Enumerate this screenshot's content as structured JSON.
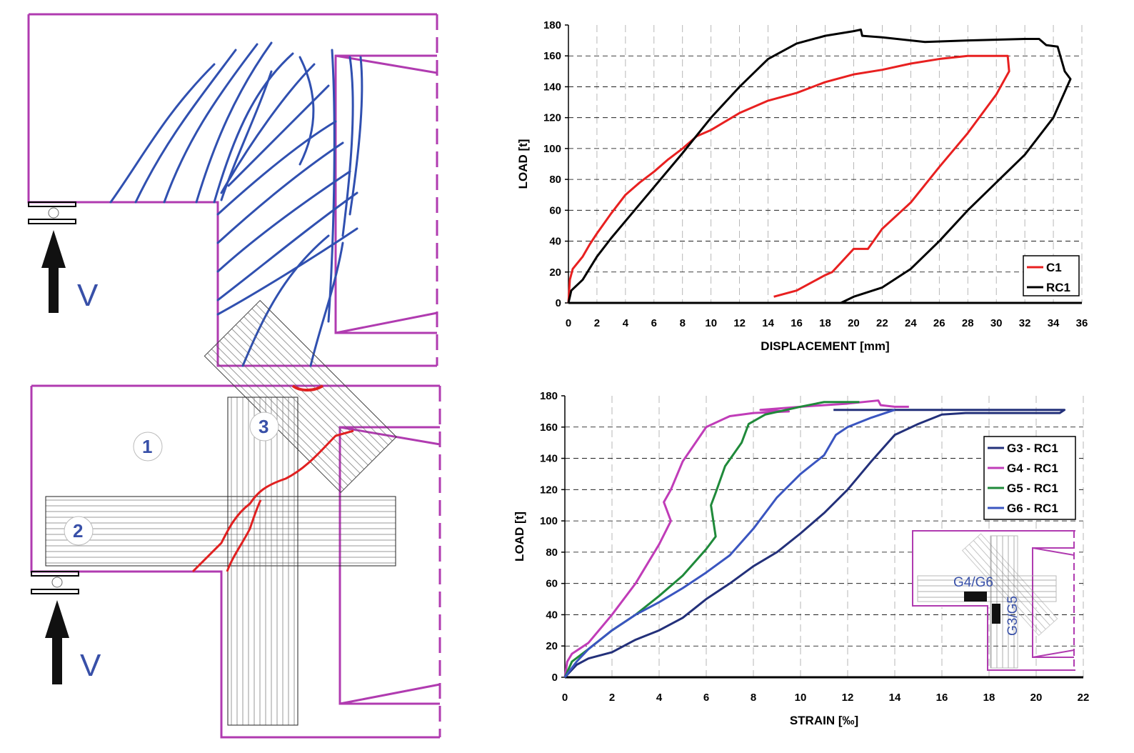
{
  "diagrams": {
    "top": {
      "force_label": "V"
    },
    "bottom": {
      "force_label": "V",
      "strip_labels": [
        "1",
        "2",
        "3"
      ]
    }
  },
  "colors": {
    "frame": "#b03bb0",
    "cracks": "#3050b0",
    "main_crack": "#e02020"
  },
  "chart_data": [
    {
      "type": "line",
      "title": "",
      "xlabel": "DISPLACEMENT [mm]",
      "ylabel": "LOAD [t]",
      "xlim": [
        0,
        36
      ],
      "ylim": [
        0,
        180
      ],
      "xticks": [
        "0",
        "2",
        "4",
        "6",
        "8",
        "10",
        "12",
        "14",
        "16",
        "18",
        "20",
        "22",
        "24",
        "26",
        "28",
        "30",
        "32",
        "34",
        "36"
      ],
      "yticks": [
        "0",
        "20",
        "40",
        "60",
        "80",
        "100",
        "120",
        "140",
        "160",
        "180"
      ],
      "grid": true,
      "legend": "bottom-right",
      "series": [
        {
          "name": "C1",
          "color": "#e82020",
          "points": [
            [
              0,
              0
            ],
            [
              0.1,
              15
            ],
            [
              0.3,
              22
            ],
            [
              1,
              30
            ],
            [
              1.5,
              38
            ],
            [
              2,
              45
            ],
            [
              3,
              58
            ],
            [
              4,
              70
            ],
            [
              5,
              78
            ],
            [
              6,
              85
            ],
            [
              7,
              93
            ],
            [
              8,
              100
            ],
            [
              9,
              108
            ],
            [
              10,
              112
            ],
            [
              12,
              123
            ],
            [
              14,
              131
            ],
            [
              16,
              136
            ],
            [
              18,
              143
            ],
            [
              20,
              148
            ],
            [
              22,
              151
            ],
            [
              24,
              155
            ],
            [
              26,
              158
            ],
            [
              28,
              160
            ],
            [
              30.8,
              160
            ],
            [
              30.9,
              150
            ],
            [
              30,
              135
            ],
            [
              28,
              110
            ],
            [
              26,
              88
            ],
            [
              24,
              65
            ],
            [
              22,
              48
            ],
            [
              21,
              35
            ],
            [
              20,
              35
            ],
            [
              18.5,
              20
            ],
            [
              18,
              18
            ],
            [
              16,
              8
            ],
            [
              14.4,
              4
            ]
          ]
        },
        {
          "name": "RC1",
          "color": "#000000",
          "points": [
            [
              0,
              0
            ],
            [
              0.2,
              8
            ],
            [
              1,
              15
            ],
            [
              2,
              30
            ],
            [
              3,
              42
            ],
            [
              4,
              53
            ],
            [
              6,
              75
            ],
            [
              8,
              97
            ],
            [
              10,
              120
            ],
            [
              12,
              140
            ],
            [
              14,
              158
            ],
            [
              16,
              168
            ],
            [
              18,
              173
            ],
            [
              20,
              176
            ],
            [
              20.5,
              177
            ],
            [
              20.6,
              173
            ],
            [
              22,
              172
            ],
            [
              25,
              169
            ],
            [
              28,
              170
            ],
            [
              32,
              171
            ],
            [
              33,
              171
            ],
            [
              33.5,
              167
            ],
            [
              34.3,
              166
            ],
            [
              34.8,
              150
            ],
            [
              35.2,
              145
            ],
            [
              34,
              120
            ],
            [
              32,
              96
            ],
            [
              30,
              78
            ],
            [
              28,
              60
            ],
            [
              26,
              40
            ],
            [
              24,
              22
            ],
            [
              22,
              10
            ],
            [
              20,
              4
            ],
            [
              19.1,
              0
            ]
          ]
        }
      ]
    },
    {
      "type": "line",
      "title": "",
      "xlabel": "STRAIN [‰]",
      "ylabel": "LOAD [t]",
      "xlim": [
        0,
        22
      ],
      "ylim": [
        0,
        180
      ],
      "xticks": [
        "0",
        "2",
        "4",
        "6",
        "8",
        "10",
        "12",
        "14",
        "16",
        "18",
        "20",
        "22"
      ],
      "yticks": [
        "0",
        "20",
        "40",
        "60",
        "80",
        "100",
        "120",
        "140",
        "160",
        "180"
      ],
      "grid": true,
      "legend": "top-right",
      "inset_labels": [
        "G4/G6",
        "G3/G5"
      ],
      "series": [
        {
          "name": "G3 - RC1",
          "color": "#23307a",
          "points": [
            [
              0,
              0
            ],
            [
              0.5,
              8
            ],
            [
              1,
              12
            ],
            [
              2,
              16
            ],
            [
              3,
              24
            ],
            [
              4,
              30
            ],
            [
              5,
              38
            ],
            [
              6,
              50
            ],
            [
              7,
              60
            ],
            [
              8,
              71
            ],
            [
              9,
              80
            ],
            [
              10,
              92
            ],
            [
              11,
              105
            ],
            [
              12,
              120
            ],
            [
              13,
              138
            ],
            [
              14,
              155
            ],
            [
              15,
              162
            ],
            [
              16,
              168
            ],
            [
              17,
              169
            ],
            [
              21,
              169
            ],
            [
              21.2,
              171
            ],
            [
              11.4,
              171
            ]
          ]
        },
        {
          "name": "G4 - RC1",
          "color": "#c03cb8",
          "points": [
            [
              0,
              0
            ],
            [
              0.1,
              10
            ],
            [
              0.3,
              15
            ],
            [
              1,
              22
            ],
            [
              2,
              40
            ],
            [
              3,
              60
            ],
            [
              4,
              85
            ],
            [
              4.5,
              100
            ],
            [
              4.3,
              108
            ],
            [
              4.2,
              112
            ],
            [
              4.5,
              120
            ],
            [
              5,
              138
            ],
            [
              6,
              160
            ],
            [
              7,
              167
            ],
            [
              8,
              169
            ],
            [
              9.5,
              170
            ],
            [
              8.3,
              171
            ],
            [
              10,
              173
            ],
            [
              12,
              175
            ],
            [
              13.3,
              177
            ],
            [
              13.4,
              174
            ],
            [
              14,
              173
            ],
            [
              14.6,
              173
            ]
          ]
        },
        {
          "name": "G5 - RC1",
          "color": "#1f8a3a",
          "points": [
            [
              0,
              0
            ],
            [
              0.3,
              10
            ],
            [
              1,
              18
            ],
            [
              2,
              30
            ],
            [
              3,
              40
            ],
            [
              4,
              52
            ],
            [
              5,
              65
            ],
            [
              6,
              82
            ],
            [
              6.4,
              90
            ],
            [
              6.3,
              100
            ],
            [
              6.2,
              110
            ],
            [
              6.4,
              118
            ],
            [
              6.8,
              135
            ],
            [
              7.5,
              150
            ],
            [
              7.8,
              162
            ],
            [
              8.5,
              168
            ],
            [
              10,
              173
            ],
            [
              11,
              176
            ],
            [
              12.5,
              176
            ]
          ]
        },
        {
          "name": "G6 - RC1",
          "color": "#3a55c0",
          "points": [
            [
              0,
              0
            ],
            [
              0.5,
              10
            ],
            [
              1,
              18
            ],
            [
              2,
              30
            ],
            [
              3,
              40
            ],
            [
              4,
              48
            ],
            [
              5,
              57
            ],
            [
              6,
              67
            ],
            [
              7,
              78
            ],
            [
              8,
              95
            ],
            [
              9,
              115
            ],
            [
              10,
              130
            ],
            [
              11,
              142
            ],
            [
              11.5,
              155
            ],
            [
              12,
              160
            ],
            [
              13,
              166
            ],
            [
              14,
              171
            ]
          ]
        }
      ]
    }
  ]
}
